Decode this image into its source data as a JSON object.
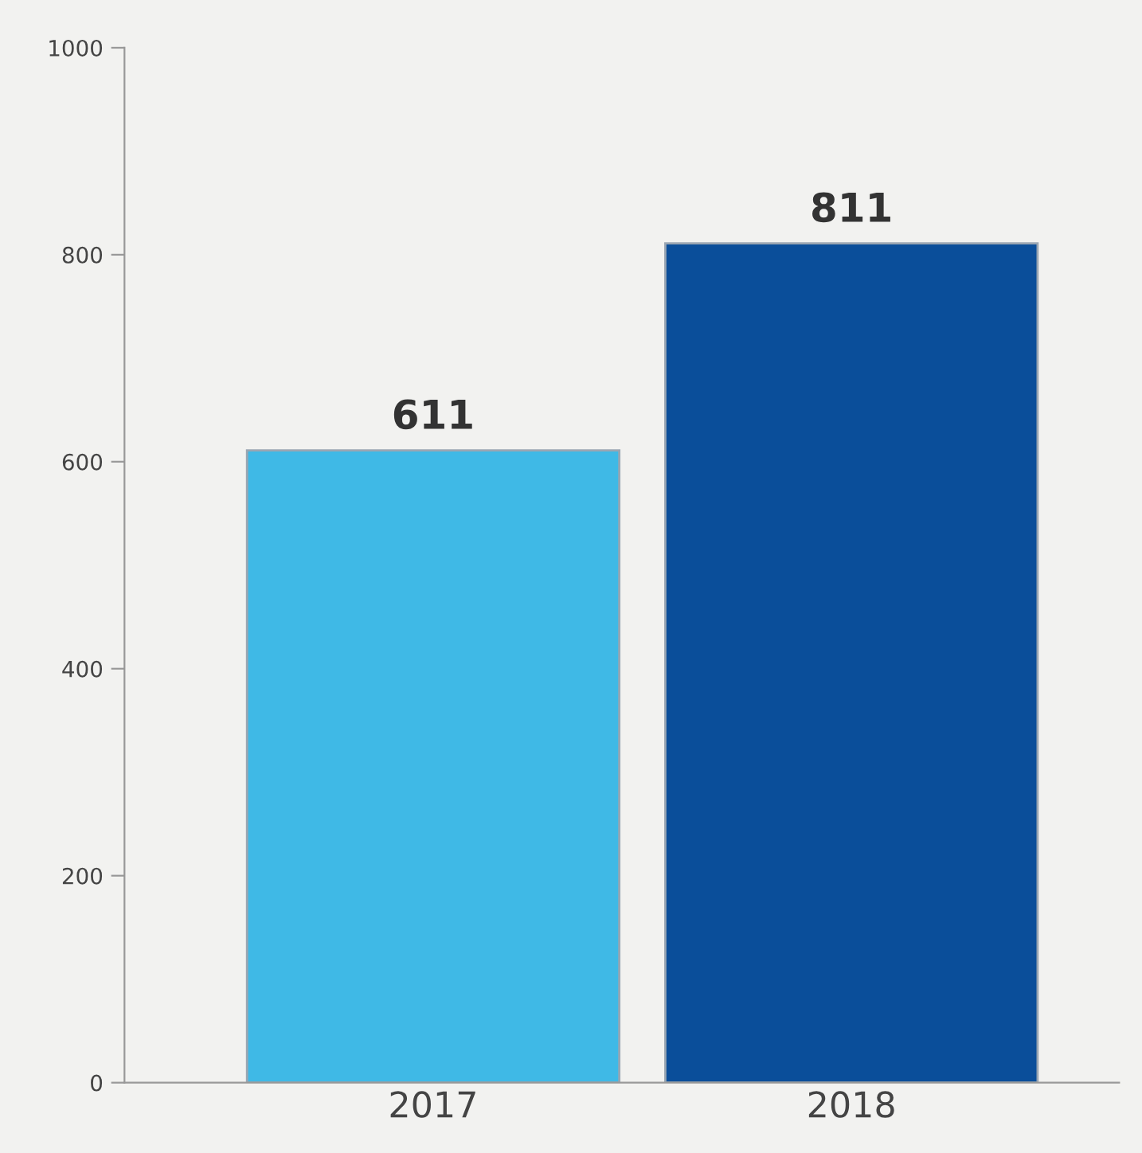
{
  "chart_data": {
    "type": "bar",
    "categories": [
      "2017",
      "2018"
    ],
    "values": [
      611,
      811
    ],
    "colors": [
      "#3fb9e6",
      "#0a4e9a"
    ],
    "ylim": [
      0,
      1000
    ],
    "yticks": [
      0,
      200,
      400,
      600,
      800,
      1000
    ],
    "data_labels": true,
    "grid": false
  }
}
